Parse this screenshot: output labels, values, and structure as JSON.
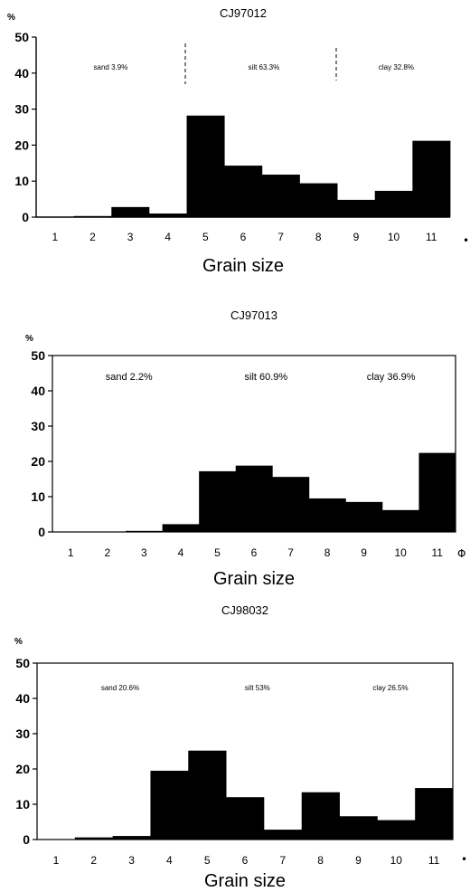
{
  "chart_data": [
    {
      "type": "bar",
      "title": "CJ97012",
      "xlabel": "Grain size",
      "y_unit": "%",
      "x_unit": "•",
      "ylim": [
        0,
        50
      ],
      "yticks": [
        "0",
        "10",
        "20",
        "30",
        "40",
        "50"
      ],
      "categories": [
        "1",
        "2",
        "3",
        "4",
        "5",
        "6",
        "7",
        "8",
        "9",
        "10",
        "11"
      ],
      "values": [
        0,
        0.3,
        2.8,
        1.0,
        28.2,
        14.3,
        11.8,
        9.4,
        4.8,
        7.3,
        21.2
      ],
      "annotations": [
        "sand 3.9%",
        "silt 63.3%",
        "clay 32.8%"
      ],
      "dividers": true,
      "grid": false
    },
    {
      "type": "bar",
      "title": "CJ97013",
      "xlabel": "Grain size",
      "y_unit": "%",
      "x_unit": "Φ",
      "ylim": [
        0,
        50
      ],
      "yticks": [
        "0",
        "10",
        "20",
        "30",
        "40",
        "50"
      ],
      "categories": [
        "1",
        "2",
        "3",
        "4",
        "5",
        "6",
        "7",
        "8",
        "9",
        "10",
        "11"
      ],
      "values": [
        0,
        0,
        0.3,
        2.2,
        17.2,
        18.8,
        15.6,
        9.5,
        8.5,
        6.2,
        22.4
      ],
      "annotations": [
        "sand 2.2%",
        "silt 60.9%",
        "clay 36.9%"
      ],
      "dividers": false,
      "grid": false
    },
    {
      "type": "bar",
      "title": "CJ98032",
      "xlabel": "Grain size",
      "y_unit": "%",
      "x_unit": "•",
      "ylim": [
        0,
        50
      ],
      "yticks": [
        "0",
        "10",
        "20",
        "30",
        "40",
        "50"
      ],
      "categories": [
        "1",
        "2",
        "3",
        "4",
        "5",
        "6",
        "7",
        "8",
        "9",
        "10",
        "11"
      ],
      "values": [
        0,
        0.6,
        1.0,
        19.5,
        25.2,
        12.0,
        2.8,
        13.4,
        6.6,
        5.5,
        14.6
      ],
      "annotations": [
        "sand 20.6%",
        "silt 53%",
        "clay 26.5%"
      ],
      "dividers": false,
      "grid": false
    }
  ]
}
